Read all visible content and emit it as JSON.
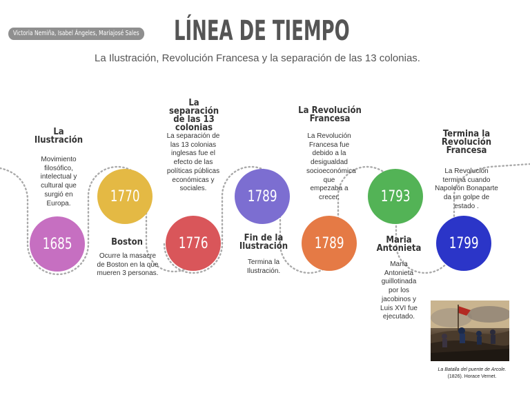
{
  "header": {
    "authors": "Victoria Nemiña, Isabel Ángeles, Mariajosé Sales",
    "title": "LÍNEA DE TIEMPO",
    "subtitle": "La Ilustración, Revolución Francesa y la separación de las 13 colonias."
  },
  "events": [
    {
      "year": "1685",
      "color": "#c66fc1",
      "heading": "La Ilustración",
      "desc": "Movimiento filosófico, intelectual y cultural que surgió en Europa."
    },
    {
      "year": "1770",
      "color": "#e4b944",
      "heading": "Boston",
      "desc": "Ocurre la masacre de Boston en la que mueren 3 personas."
    },
    {
      "year": "1776",
      "color": "#d9565a",
      "heading": "La separación de las 13 colonias",
      "desc": "La separación de las 13 colonias inglesas fue el efecto de las políticas públicas económicas y sociales."
    },
    {
      "year": "1789",
      "color": "#7c6ed1",
      "heading": "Fin de la Ilustración",
      "desc": "Termina la Ilustración."
    },
    {
      "year": "1789",
      "color": "#e57a45",
      "heading": "La Revolución Francesa",
      "desc": "La Revolución Francesa fue debido a la desigualdad socioeconómica que empezaba a crecer."
    },
    {
      "year": "1793",
      "color": "#53b356",
      "heading": "Maria Antonieta",
      "desc": "María Antonieta guillotinada por los jacobinos y Luis XVI fue ejecutado."
    },
    {
      "year": "1799",
      "color": "#2b35c8",
      "heading": "Termina la Revolución Francesa",
      "desc": "La Revolución termina cuando Napoleón Bonaparte da un golpe de estado ."
    }
  ],
  "painting": {
    "caption_title": "La Batalla del puente de Arcole.",
    "caption_rest": "(1826). Horace Vernet."
  }
}
